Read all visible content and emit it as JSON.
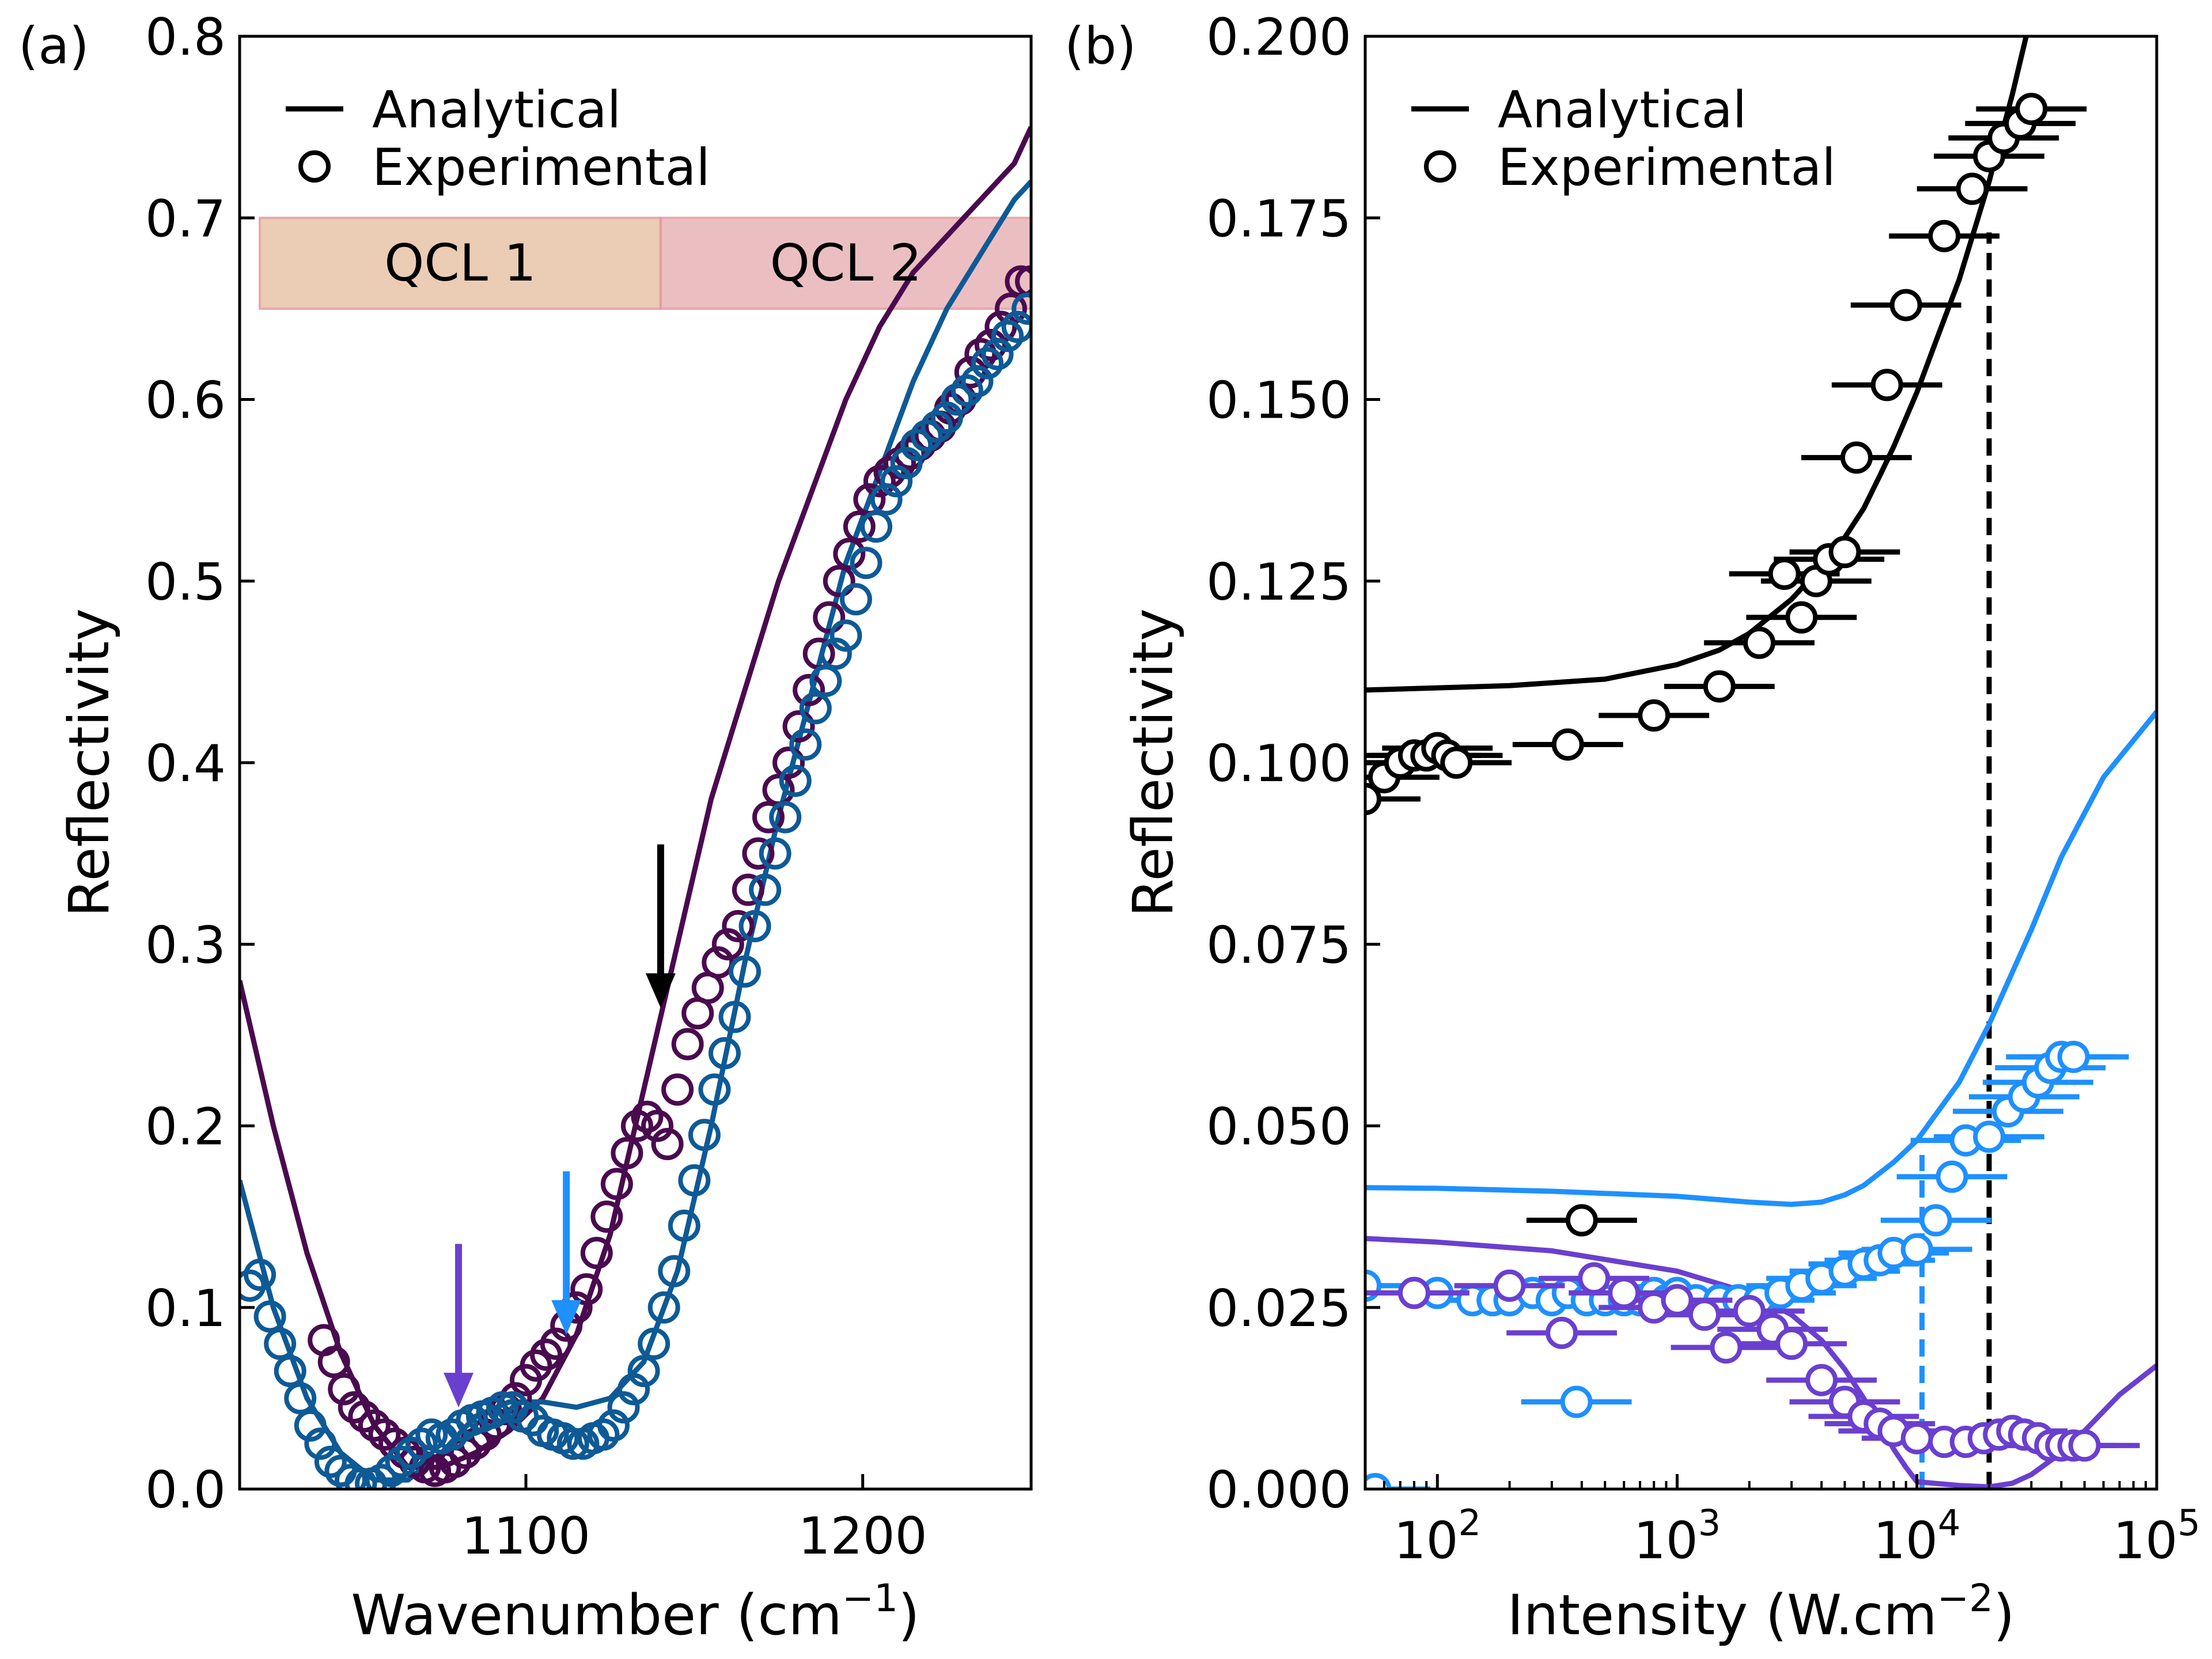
{
  "chart_data": [
    {
      "panel": "(a)",
      "type": "line",
      "xlabel": "Wavenumber (cm",
      "xlabel_sup": "−1",
      "xlabel_close": ")",
      "ylabel": "Reflectivity",
      "xlim": [
        1015,
        1250
      ],
      "ylim": [
        0,
        0.8
      ],
      "xticks": [
        1100,
        1200
      ],
      "yticks": [
        0.0,
        0.1,
        0.2,
        0.3,
        0.4,
        0.5,
        0.6,
        0.7,
        0.8
      ],
      "ytick_labels": [
        "0.0",
        "0.1",
        "0.2",
        "0.3",
        "0.4",
        "0.5",
        "0.6",
        "0.7",
        "0.8"
      ],
      "legend": {
        "position": "top-left",
        "line_label": "Analytical",
        "marker_label": "Experimental"
      },
      "bands": [
        {
          "label": "QCL 1",
          "x": [
            1021,
            1140
          ],
          "y": [
            0.65,
            0.7
          ],
          "color": "#e8c4a8"
        },
        {
          "label": "QCL 2",
          "x": [
            1140,
            1250
          ],
          "y": [
            0.65,
            0.7
          ],
          "color": "#e8b4b8"
        }
      ],
      "arrows": [
        {
          "x": 1080,
          "y_from": 0.135,
          "y_to": 0.045,
          "color": "#6a3fd0"
        },
        {
          "x": 1112,
          "y_from": 0.175,
          "y_to": 0.085,
          "color": "#1e90ff"
        },
        {
          "x": 1140,
          "y_from": 0.355,
          "y_to": 0.265,
          "color": "#000000"
        }
      ],
      "series": [
        {
          "name": "analytical-purple",
          "color": "#4a0a4f",
          "kind": "line",
          "x": [
            1015,
            1025,
            1035,
            1045,
            1055,
            1065,
            1075,
            1085,
            1095,
            1105,
            1115,
            1125,
            1135,
            1145,
            1155,
            1165,
            1175,
            1185,
            1195,
            1205,
            1215,
            1225,
            1235,
            1245,
            1250
          ],
          "y": [
            0.28,
            0.2,
            0.13,
            0.075,
            0.035,
            0.012,
            0.012,
            0.02,
            0.032,
            0.05,
            0.085,
            0.14,
            0.22,
            0.3,
            0.38,
            0.44,
            0.5,
            0.55,
            0.6,
            0.64,
            0.67,
            0.69,
            0.71,
            0.73,
            0.75
          ]
        },
        {
          "name": "analytical-blue",
          "color": "#0e5a96",
          "kind": "line",
          "x": [
            1015,
            1025,
            1035,
            1045,
            1055,
            1065,
            1075,
            1085,
            1095,
            1105,
            1115,
            1125,
            1135,
            1145,
            1155,
            1165,
            1175,
            1185,
            1195,
            1205,
            1215,
            1225,
            1235,
            1245,
            1250
          ],
          "y": [
            0.17,
            0.1,
            0.05,
            0.02,
            0.005,
            0.005,
            0.02,
            0.04,
            0.048,
            0.048,
            0.045,
            0.05,
            0.07,
            0.12,
            0.2,
            0.29,
            0.37,
            0.44,
            0.51,
            0.56,
            0.61,
            0.65,
            0.68,
            0.71,
            0.72
          ]
        },
        {
          "name": "experimental-purple",
          "color": "#4a0a4f",
          "kind": "markers",
          "x": [
            1040,
            1043,
            1046,
            1049,
            1052,
            1055,
            1058,
            1061,
            1064,
            1067,
            1070,
            1073,
            1076,
            1079,
            1082,
            1085,
            1088,
            1091,
            1094,
            1097,
            1100,
            1103,
            1106,
            1109,
            1112,
            1115,
            1118,
            1121,
            1124,
            1127,
            1130,
            1133,
            1136,
            1139,
            1142,
            1145,
            1148,
            1151,
            1154,
            1157,
            1160,
            1163,
            1166,
            1169,
            1172,
            1175,
            1178,
            1181,
            1184,
            1187,
            1190,
            1193,
            1196,
            1199,
            1202,
            1205,
            1208,
            1211,
            1214,
            1217,
            1220,
            1223,
            1226,
            1229,
            1232,
            1235,
            1238,
            1241,
            1244,
            1247,
            1250
          ],
          "y": [
            0.082,
            0.07,
            0.055,
            0.045,
            0.04,
            0.035,
            0.03,
            0.025,
            0.02,
            0.015,
            0.012,
            0.01,
            0.012,
            0.015,
            0.02,
            0.025,
            0.03,
            0.036,
            0.044,
            0.05,
            0.06,
            0.068,
            0.074,
            0.08,
            0.09,
            0.1,
            0.11,
            0.13,
            0.15,
            0.168,
            0.185,
            0.2,
            0.205,
            0.2,
            0.19,
            0.22,
            0.245,
            0.262,
            0.276,
            0.29,
            0.3,
            0.31,
            0.33,
            0.35,
            0.37,
            0.385,
            0.4,
            0.42,
            0.44,
            0.46,
            0.48,
            0.5,
            0.515,
            0.53,
            0.545,
            0.555,
            0.56,
            0.565,
            0.57,
            0.575,
            0.58,
            0.585,
            0.595,
            0.6,
            0.615,
            0.625,
            0.63,
            0.64,
            0.65,
            0.665,
            0.665
          ]
        },
        {
          "name": "experimental-blue",
          "color": "#0e5a96",
          "kind": "markers",
          "x": [
            1018,
            1021,
            1024,
            1027,
            1030,
            1033,
            1036,
            1039,
            1042,
            1045,
            1048,
            1051,
            1054,
            1057,
            1060,
            1063,
            1066,
            1069,
            1072,
            1075,
            1078,
            1081,
            1084,
            1087,
            1090,
            1093,
            1096,
            1099,
            1102,
            1105,
            1108,
            1111,
            1114,
            1117,
            1120,
            1123,
            1126,
            1129,
            1132,
            1135,
            1138,
            1141,
            1144,
            1147,
            1150,
            1153,
            1156,
            1159,
            1162,
            1165,
            1168,
            1171,
            1174,
            1177,
            1180,
            1183,
            1186,
            1189,
            1192,
            1195,
            1198,
            1201,
            1204,
            1207,
            1210,
            1213,
            1216,
            1219,
            1222,
            1225,
            1228,
            1231,
            1234,
            1237,
            1240,
            1243,
            1246,
            1249
          ],
          "y": [
            0.112,
            0.118,
            0.095,
            0.08,
            0.065,
            0.05,
            0.035,
            0.025,
            0.015,
            0.01,
            0.005,
            0.003,
            0.003,
            0.005,
            0.01,
            0.015,
            0.02,
            0.025,
            0.03,
            0.028,
            0.03,
            0.035,
            0.038,
            0.04,
            0.042,
            0.045,
            0.045,
            0.04,
            0.038,
            0.032,
            0.03,
            0.028,
            0.025,
            0.025,
            0.028,
            0.03,
            0.035,
            0.045,
            0.055,
            0.065,
            0.08,
            0.1,
            0.12,
            0.145,
            0.17,
            0.195,
            0.22,
            0.24,
            0.26,
            0.285,
            0.31,
            0.33,
            0.35,
            0.37,
            0.39,
            0.41,
            0.43,
            0.445,
            0.46,
            0.47,
            0.49,
            0.51,
            0.53,
            0.545,
            0.555,
            0.565,
            0.575,
            0.58,
            0.585,
            0.59,
            0.6,
            0.605,
            0.61,
            0.62,
            0.625,
            0.635,
            0.64,
            0.65
          ]
        }
      ]
    },
    {
      "panel": "(b)",
      "type": "scatter",
      "xscale": "log",
      "xlabel": "Intensity (W.cm",
      "xlabel_sup": "−2",
      "xlabel_close": ")",
      "ylabel": "Reflectivity",
      "xlim": [
        50,
        100000
      ],
      "ylim": [
        0,
        0.2
      ],
      "xticks": [
        100,
        1000,
        10000,
        100000
      ],
      "xtick_exponents": [
        "2",
        "3",
        "4",
        "5"
      ],
      "xtick_base": "10",
      "yticks": [
        0.0,
        0.025,
        0.05,
        0.075,
        0.1,
        0.125,
        0.15,
        0.175,
        0.2
      ],
      "ytick_labels": [
        "0.000",
        "0.025",
        "0.050",
        "0.075",
        "0.100",
        "0.125",
        "0.150",
        "0.175",
        "0.200"
      ],
      "legend": {
        "position": "top-left",
        "line_label": "Analytical",
        "marker_label": "Experimental"
      },
      "vlines": [
        {
          "x": 20000,
          "ymax": 0.173,
          "color": "#000000"
        },
        {
          "x": 10500,
          "ymax": 0.046,
          "color": "#1e90ff"
        }
      ],
      "series": [
        {
          "name": "analytical-black",
          "color": "#000000",
          "kind": "line",
          "x": [
            50,
            100,
            200,
            500,
            1000,
            1500,
            2000,
            3000,
            4000,
            5000,
            6000,
            7000,
            8000,
            10000,
            12000,
            15000,
            20000,
            25000,
            30000
          ],
          "y": [
            0.11,
            0.1103,
            0.1106,
            0.1115,
            0.1135,
            0.1155,
            0.1178,
            0.1225,
            0.127,
            0.131,
            0.135,
            0.1395,
            0.1435,
            0.151,
            0.158,
            0.1665,
            0.18,
            0.192,
            0.203
          ]
        },
        {
          "name": "analytical-blue",
          "color": "#1e90ff",
          "kind": "line",
          "x": [
            50,
            100,
            300,
            1000,
            2000,
            3000,
            4000,
            5000,
            6000,
            8000,
            10000,
            15000,
            20000,
            30000,
            40000,
            60000,
            100000
          ],
          "y": [
            0.0415,
            0.0414,
            0.041,
            0.0403,
            0.0395,
            0.0392,
            0.0395,
            0.0405,
            0.0418,
            0.045,
            0.048,
            0.056,
            0.064,
            0.077,
            0.087,
            0.098,
            0.107
          ]
        },
        {
          "name": "analytical-purple-a",
          "color": "#6a3fd0",
          "kind": "line",
          "x": [
            50,
            100,
            300,
            1000,
            2000,
            3000,
            4000,
            5000,
            6000,
            7000,
            8000,
            9000,
            10000
          ],
          "y": [
            0.0345,
            0.034,
            0.0328,
            0.03,
            0.027,
            0.024,
            0.0205,
            0.0165,
            0.0125,
            0.009,
            0.0055,
            0.003,
            0.001
          ]
        },
        {
          "name": "analytical-purple-b",
          "color": "#6a3fd0",
          "kind": "line",
          "x": [
            10000,
            15000,
            20000,
            25000,
            30000,
            40000,
            50000,
            70000,
            100000
          ],
          "y": [
            0.001,
            0.0005,
            0.0003,
            0.0008,
            0.002,
            0.005,
            0.008,
            0.013,
            0.017
          ]
        },
        {
          "name": "experimental-black",
          "color": "#000000",
          "kind": "markers",
          "xerr_factor": 1.7,
          "x": [
            50,
            60,
            70,
            80,
            90,
            100,
            110,
            120,
            350,
            800,
            1500,
            2200,
            2800,
            3300,
            3800,
            4300,
            5000,
            5600,
            7500,
            9000,
            13000,
            17000,
            20000,
            23000,
            27000,
            30000,
            400
          ],
          "y": [
            0.095,
            0.098,
            0.1,
            0.101,
            0.101,
            0.102,
            0.101,
            0.1,
            0.1025,
            0.1065,
            0.1105,
            0.1165,
            0.126,
            0.12,
            0.125,
            0.128,
            0.129,
            0.142,
            0.152,
            0.163,
            0.1725,
            0.179,
            0.1835,
            0.186,
            0.188,
            0.19,
            0.037
          ]
        },
        {
          "name": "experimental-blue",
          "color": "#1e90ff",
          "kind": "markers",
          "xerr_factor": 1.7,
          "x": [
            50,
            100,
            140,
            170,
            200,
            250,
            300,
            350,
            420,
            500,
            600,
            700,
            800,
            900,
            1000,
            1200,
            1500,
            1800,
            2200,
            2700,
            3300,
            4000,
            5000,
            6000,
            7000,
            8000,
            10000,
            12000,
            14000,
            16000,
            20000,
            24000,
            28000,
            32000,
            36000,
            40000,
            45000,
            380,
            55
          ],
          "y": [
            0.028,
            0.027,
            0.026,
            0.026,
            0.026,
            0.027,
            0.026,
            0.027,
            0.026,
            0.026,
            0.026,
            0.026,
            0.027,
            0.026,
            0.027,
            0.026,
            0.026,
            0.026,
            0.026,
            0.027,
            0.028,
            0.029,
            0.03,
            0.031,
            0.0315,
            0.0325,
            0.033,
            0.037,
            0.043,
            0.048,
            0.0485,
            0.052,
            0.054,
            0.056,
            0.058,
            0.0595,
            0.0595,
            0.012,
            0.0
          ]
        },
        {
          "name": "experimental-purple",
          "color": "#6a3fd0",
          "kind": "markers",
          "xerr_factor": 1.7,
          "x": [
            80,
            200,
            330,
            450,
            600,
            800,
            1000,
            1300,
            1600,
            2000,
            2500,
            3000,
            4000,
            5000,
            6000,
            7000,
            8000,
            10000,
            13000,
            16000,
            19000,
            22000,
            25000,
            28000,
            32000,
            36000,
            40000,
            45000,
            50000
          ],
          "y": [
            0.027,
            0.028,
            0.0215,
            0.029,
            0.027,
            0.025,
            0.026,
            0.024,
            0.0195,
            0.0245,
            0.022,
            0.02,
            0.015,
            0.012,
            0.01,
            0.009,
            0.008,
            0.007,
            0.0065,
            0.0065,
            0.007,
            0.0075,
            0.008,
            0.0075,
            0.007,
            0.006,
            0.006,
            0.006,
            0.006
          ]
        }
      ]
    }
  ]
}
